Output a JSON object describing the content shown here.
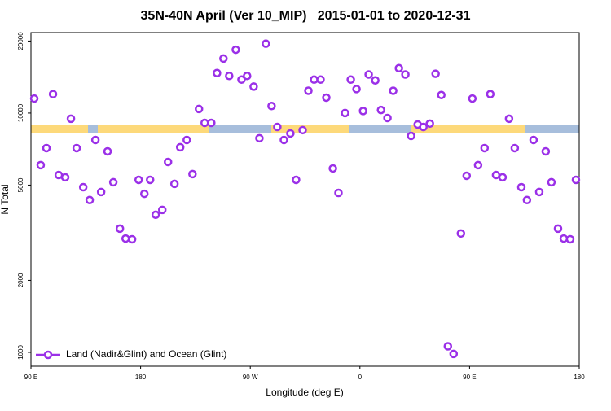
{
  "chart_data": {
    "type": "scatter",
    "title": "35N-40N April (Ver 10_MIP)   2015-01-01 to 2020-12-31",
    "xlabel": "Longitude (deg E)",
    "ylabel": "N Total",
    "xlim": [
      -270,
      180
    ],
    "xticks": [
      {
        "value": -270,
        "label": "90 E"
      },
      {
        "value": -180,
        "label": "180"
      },
      {
        "value": -90,
        "label": "90 W"
      },
      0,
      {
        "value": 90,
        "label": "90 E"
      },
      180
    ],
    "ylim": [
      875,
      21700
    ],
    "yscale": "log",
    "yticks": [
      1000,
      2000,
      5000,
      10000,
      20000
    ],
    "legend": "lower left",
    "series": [
      {
        "name": "Land (Nadir&Glint) and Ocean (Glint)",
        "color": "#9b30e8",
        "x": [
          -267.3,
          -262,
          -257.3,
          -251.9,
          -247.2,
          -241.9,
          -237.2,
          -232.5,
          -227.1,
          -221.8,
          -217.1,
          -212.4,
          -207.1,
          -202.4,
          -197,
          -192.3,
          -187,
          -181.6,
          -176.9,
          -172.2,
          -167.6,
          -162.2,
          -157.5,
          -152.2,
          -147.5,
          -142.1,
          -137.4,
          -132.1,
          -127.4,
          -122,
          -117.3,
          -112,
          -107.3,
          -101.9,
          -97.2,
          -92.6,
          -87.2,
          -82.5,
          -77.2,
          -72.5,
          -67.8,
          -62.4,
          -57.1,
          -52.4,
          -47,
          -42.3,
          -37.6,
          -32.3,
          -27.6,
          -22.2,
          -17.6,
          -12.2,
          -7.5,
          -2.8,
          2.6,
          7.2,
          12.6,
          17.3,
          22.6,
          27.3,
          32,
          37.3,
          42,
          47.4,
          52.1,
          57.4,
          62.1,
          66.8,
          72.2,
          76.9,
          82.9,
          87.6,
          92.3,
          97,
          102.3,
          107,
          111.7,
          117.1,
          122.4,
          127.1,
          132.5,
          137.1,
          142.5,
          147.2,
          152.5,
          157.2,
          162.6,
          167.3,
          172.6,
          177.3
        ],
        "values": [
          11500,
          6060,
          7140,
          12000,
          5510,
          5390,
          9470,
          7140,
          4900,
          4330,
          7720,
          4680,
          6920,
          5140,
          3290,
          2990,
          2970,
          5260,
          4600,
          5260,
          3760,
          3940,
          6250,
          5060,
          7200,
          7720,
          5560,
          10400,
          9100,
          9100,
          14700,
          16900,
          14300,
          18400,
          13800,
          14300,
          12900,
          7850,
          19500,
          10700,
          8750,
          7720,
          8220,
          5260,
          8490,
          12400,
          13800,
          13800,
          11600,
          5870,
          4640,
          10000,
          13800,
          12600,
          10200,
          14500,
          13700,
          10300,
          9540,
          12400,
          15400,
          14500,
          8030,
          8960,
          8750,
          9040,
          14600,
          11900,
          1060,
          985,
          3140,
          5470,
          11500,
          6060,
          7140,
          12000,
          5510,
          5390,
          9470,
          7140,
          4900,
          4330,
          7720,
          4680,
          6920,
          5140,
          3290,
          2990,
          2970,
          5260
        ]
      }
    ]
  }
}
